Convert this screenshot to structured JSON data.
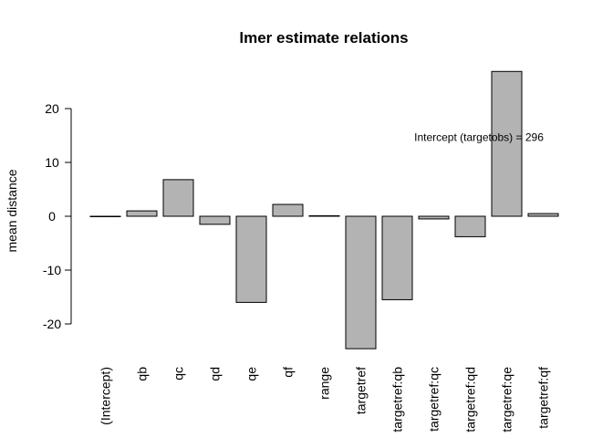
{
  "chart_data": {
    "type": "bar",
    "title": "lmer estimate relations",
    "xlabel": "",
    "ylabel": "mean distance",
    "ylim": [
      -25,
      27
    ],
    "yticks": [
      -20,
      -10,
      0,
      10,
      20
    ],
    "categories": [
      "(Intercept)",
      "qb",
      "qc",
      "qd",
      "qe",
      "qf",
      "range",
      "targetref",
      "targetref:qb",
      "targetref:qc",
      "targetref:qd",
      "targetref:qe",
      "targetref:qf"
    ],
    "values": [
      0,
      1.0,
      6.8,
      -1.5,
      -16.0,
      2.2,
      0.1,
      -24.6,
      -15.5,
      -0.5,
      -3.8,
      26.9,
      0.5
    ],
    "annotation": "Intercept (targetobs) = 296",
    "grid": false,
    "legend": "none"
  }
}
